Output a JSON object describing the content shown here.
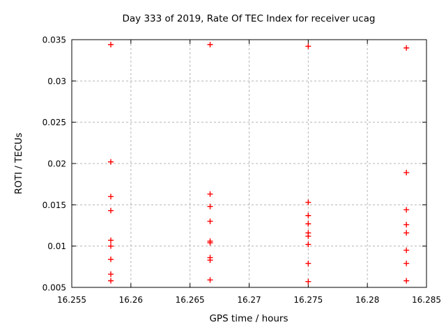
{
  "chart_data": {
    "type": "scatter",
    "title": "Day 333 of 2019, Rate Of TEC Index for receiver ucag",
    "xlabel": "GPS time / hours",
    "ylabel": "ROTI / TECUs",
    "xlim": [
      16.255,
      16.285
    ],
    "ylim": [
      0.005,
      0.035
    ],
    "xticks": [
      16.255,
      16.26,
      16.265,
      16.27,
      16.275,
      16.28,
      16.285
    ],
    "xtick_labels": [
      "16.255",
      "16.26",
      "16.265",
      "16.27",
      "16.275",
      "16.28",
      "16.285"
    ],
    "yticks": [
      0.005,
      0.01,
      0.015,
      0.02,
      0.025,
      0.03,
      0.035
    ],
    "ytick_labels": [
      "0.005",
      "0.01",
      "0.015",
      "0.02",
      "0.025",
      "0.03",
      "0.035"
    ],
    "grid": true,
    "legend_position": "none",
    "marker": {
      "shape": "plus",
      "color": "#ff0000",
      "size": 8
    },
    "colors": {
      "background": "#ffffff",
      "border": "#000000",
      "gridline": "#b5b5b5",
      "text": "#000000"
    },
    "series": [
      {
        "name": "ROTI",
        "points": [
          [
            16.2583,
            0.0344
          ],
          [
            16.2583,
            0.0202
          ],
          [
            16.2583,
            0.016
          ],
          [
            16.2583,
            0.0143
          ],
          [
            16.2583,
            0.0107
          ],
          [
            16.2583,
            0.01
          ],
          [
            16.2583,
            0.0084
          ],
          [
            16.2583,
            0.0066
          ],
          [
            16.2583,
            0.0058
          ],
          [
            16.2667,
            0.0344
          ],
          [
            16.2667,
            0.0163
          ],
          [
            16.2667,
            0.0148
          ],
          [
            16.2667,
            0.013
          ],
          [
            16.2667,
            0.0106
          ],
          [
            16.2667,
            0.0104
          ],
          [
            16.2667,
            0.0086
          ],
          [
            16.2667,
            0.0083
          ],
          [
            16.2667,
            0.0059
          ],
          [
            16.275,
            0.0342
          ],
          [
            16.275,
            0.0153
          ],
          [
            16.275,
            0.0137
          ],
          [
            16.275,
            0.0127
          ],
          [
            16.275,
            0.0116
          ],
          [
            16.275,
            0.0112
          ],
          [
            16.275,
            0.0102
          ],
          [
            16.275,
            0.0079
          ],
          [
            16.275,
            0.0057
          ],
          [
            16.2833,
            0.034
          ],
          [
            16.2833,
            0.0189
          ],
          [
            16.2833,
            0.0144
          ],
          [
            16.2833,
            0.0126
          ],
          [
            16.2833,
            0.0116
          ],
          [
            16.2833,
            0.0095
          ],
          [
            16.2833,
            0.0079
          ],
          [
            16.2833,
            0.0058
          ]
        ]
      }
    ]
  }
}
